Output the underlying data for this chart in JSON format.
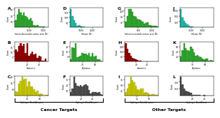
{
  "panels": [
    {
      "label": "A",
      "row": 0,
      "col": 0,
      "color": "#33aa33",
      "edge_color": "#1a7a1a",
      "xlabel": "Solvent Accessible surface area (Å²)",
      "ylabel": "Count",
      "xmin": 0,
      "xmax": 3500,
      "yticks_max": 35,
      "hist_type": "sasa_cancer"
    },
    {
      "label": "B",
      "row": 1,
      "col": 0,
      "color": "#990000",
      "edge_color": "#550000",
      "xlabel": "Aromatics",
      "ylabel": "Count",
      "xmin": 0,
      "xmax": 55,
      "yticks_max": 35,
      "hist_type": "arom_cancer"
    },
    {
      "label": "C",
      "row": 2,
      "col": 0,
      "color": "#cccc00",
      "edge_color": "#888800",
      "xlabel": "Hydrogen Bond Acceptor",
      "ylabel": "Count",
      "xmin": 0,
      "xmax": 80,
      "yticks_max": 30,
      "hist_type": "hba_cancer"
    },
    {
      "label": "D",
      "row": 0,
      "col": 1,
      "color": "#22bbaa",
      "edge_color": "#118877",
      "xlabel": "Volume (Å³)",
      "ylabel": "Count",
      "xmin": 0,
      "xmax": 3000,
      "yticks_max": 60,
      "hist_type": "vol_cancer"
    },
    {
      "label": "E",
      "row": 1,
      "col": 1,
      "color": "#33aa33",
      "edge_color": "#1a7a1a",
      "xlabel": "Aliphatics",
      "ylabel": "Count",
      "xmin": 0,
      "xmax": 80,
      "yticks_max": 30,
      "hist_type": "ali_cancer"
    },
    {
      "label": "F",
      "row": 2,
      "col": 1,
      "color": "#555555",
      "edge_color": "#222222",
      "xlabel": "Hydrogen Bond Donors",
      "ylabel": "Count",
      "xmin": 0,
      "xmax": 60,
      "yticks_max": 30,
      "hist_type": "hbd_cancer"
    },
    {
      "label": "G",
      "row": 0,
      "col": 2,
      "color": "#33aa33",
      "edge_color": "#1a7a1a",
      "xlabel": "Solvent accessible surface area (Å²)",
      "ylabel": "Count",
      "xmin": 0,
      "xmax": 2000,
      "yticks_max": 150,
      "hist_type": "sasa_other"
    },
    {
      "label": "H",
      "row": 1,
      "col": 2,
      "color": "#990000",
      "edge_color": "#550000",
      "xlabel": "Aromatics",
      "ylabel": "Count",
      "xmin": 0,
      "xmax": 60,
      "yticks_max": 150,
      "hist_type": "arom_other"
    },
    {
      "label": "I",
      "row": 2,
      "col": 2,
      "color": "#cccc00",
      "edge_color": "#888800",
      "xlabel": "Hydrogen Bond Acceptor",
      "ylabel": "Count",
      "xmin": 0,
      "xmax": 70,
      "yticks_max": 60,
      "hist_type": "hba_other"
    },
    {
      "label": "J",
      "row": 0,
      "col": 3,
      "color": "#22bbaa",
      "edge_color": "#118877",
      "xlabel": "Volume (Å³)",
      "ylabel": "Count",
      "xmin": 0,
      "xmax": 4500,
      "yticks_max": 1500,
      "hist_type": "vol_other"
    },
    {
      "label": "K",
      "row": 1,
      "col": 3,
      "color": "#33aa33",
      "edge_color": "#1a7a1a",
      "xlabel": "Aliphatics",
      "ylabel": "Count",
      "xmin": 0,
      "xmax": 80,
      "yticks_max": 100,
      "hist_type": "ali_other"
    },
    {
      "label": "L",
      "row": 2,
      "col": 3,
      "color": "#555555",
      "edge_color": "#222222",
      "xlabel": "Hydrogen Bond Donor",
      "ylabel": "Count",
      "xmin": 0,
      "xmax": 55,
      "yticks_max": 400,
      "hist_type": "hbd_other"
    }
  ],
  "cancer_label": "Cancer Targets",
  "other_label": "Other Targets",
  "fig_bg": "#ffffff"
}
